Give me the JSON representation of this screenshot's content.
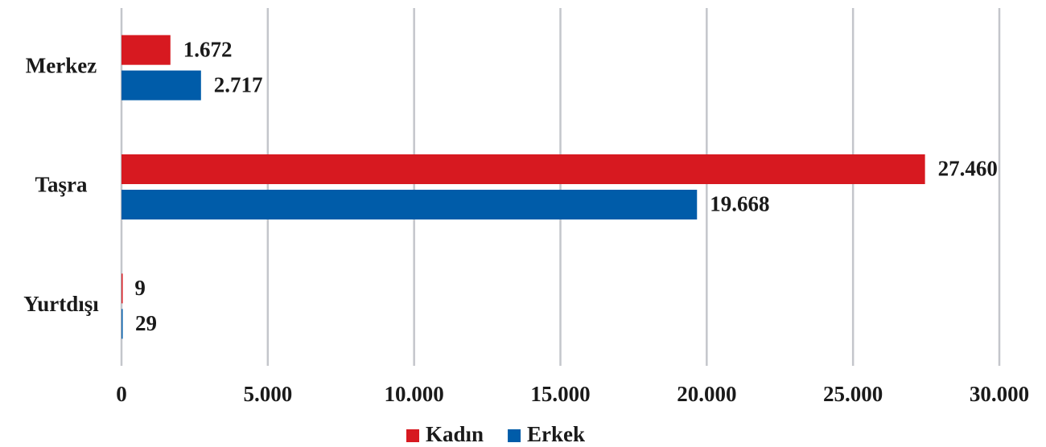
{
  "chart_data": {
    "type": "hbar",
    "categories": [
      "Merkez",
      "Taşra",
      "Yurtdışı"
    ],
    "series": [
      {
        "name": "Kadın",
        "color": "#d71920",
        "values": [
          1672,
          27460,
          9
        ],
        "value_labels": [
          "1.672",
          "27.460",
          "9"
        ]
      },
      {
        "name": "Erkek",
        "color": "#005ca9",
        "values": [
          2717,
          19668,
          29
        ],
        "value_labels": [
          "2.717",
          "19.668",
          "29"
        ]
      }
    ],
    "xlim": [
      0,
      30000
    ],
    "xticks": [
      0,
      {
        "value": 5000,
        "label": "5.000"
      },
      {
        "value": 10000,
        "label": "10.000"
      },
      {
        "value": 15000,
        "label": "15.000"
      },
      {
        "value": 20000,
        "label": "20.000"
      },
      {
        "value": 25000,
        "label": "25.000"
      },
      {
        "value": 30000,
        "label": "30.000"
      }
    ],
    "grid": true,
    "legend": "bottom"
  }
}
